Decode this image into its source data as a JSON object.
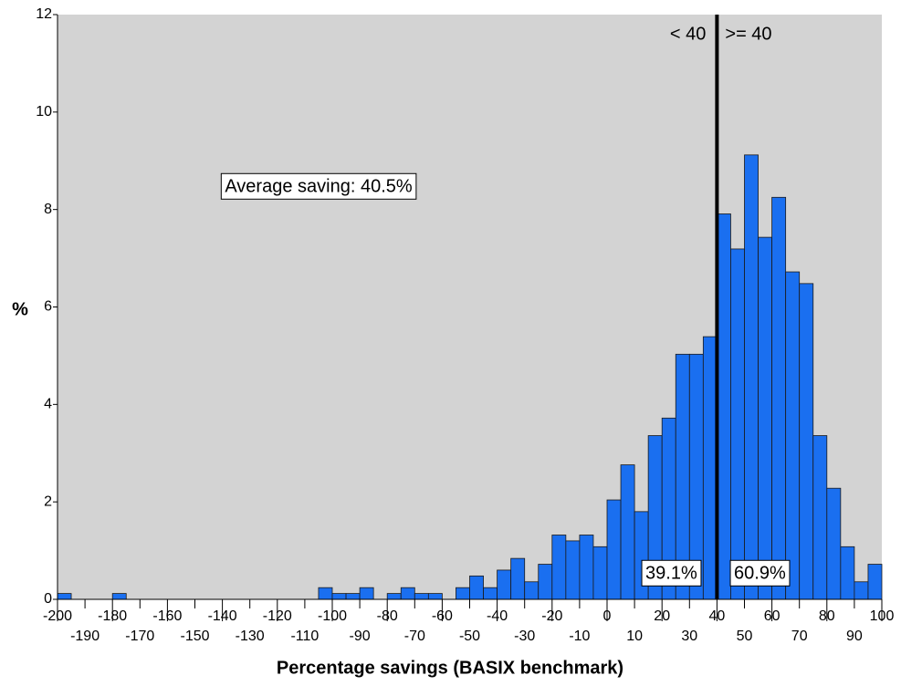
{
  "chart_data": {
    "type": "histogram",
    "xlabel": "Percentage savings (BASIX benchmark)",
    "ylabel": "%",
    "bins": [
      -200,
      -195,
      -190,
      -185,
      -180,
      -175,
      -170,
      -165,
      -160,
      -155,
      -150,
      -145,
      -140,
      -135,
      -130,
      -125,
      -120,
      -115,
      -110,
      -105,
      -100,
      -95,
      -90,
      -85,
      -80,
      -75,
      -70,
      -65,
      -60,
      -55,
      -50,
      -45,
      -40,
      -35,
      -30,
      -25,
      -20,
      -15,
      -10,
      -5,
      0,
      5,
      10,
      15,
      20,
      25,
      30,
      35,
      40,
      45,
      50,
      55,
      60,
      65,
      70,
      75,
      80,
      85,
      90,
      95,
      100
    ],
    "values": [
      0.12,
      0,
      0,
      0,
      0.12,
      0,
      0,
      0,
      0,
      0,
      0,
      0,
      0,
      0,
      0,
      0,
      0,
      0,
      0,
      0.24,
      0.12,
      0.12,
      0.24,
      0,
      0.12,
      0.24,
      0.12,
      0.12,
      0,
      0.24,
      0.48,
      0.24,
      0.6,
      0.84,
      0.36,
      0.72,
      1.32,
      1.2,
      1.32,
      1.08,
      2.04,
      2.76,
      1.8,
      3.36,
      3.72,
      5.03,
      5.03,
      5.39,
      7.91,
      7.19,
      9.12,
      7.43,
      8.25,
      6.72,
      6.48,
      3.36,
      2.28,
      1.08,
      0.36,
      0.72
    ],
    "color": "#1a6ff0",
    "xlim": [
      -200,
      100
    ],
    "xticks": [
      -200,
      -190,
      -180,
      -170,
      -160,
      -150,
      -140,
      -130,
      -120,
      -110,
      -100,
      -90,
      -80,
      -70,
      -60,
      -50,
      -40,
      -30,
      -20,
      -10,
      0,
      10,
      20,
      30,
      40,
      50,
      60,
      70,
      80,
      90,
      100
    ],
    "ylim": [
      0,
      12
    ],
    "yticks": [
      0,
      2,
      4,
      6,
      8,
      10,
      12
    ],
    "ref_line": 40,
    "annotations": {
      "left_side": "< 40",
      "right_side": ">= 40",
      "left_share": "39.1%",
      "right_share": "60.9%",
      "average": "Average saving: 40.5%"
    }
  }
}
